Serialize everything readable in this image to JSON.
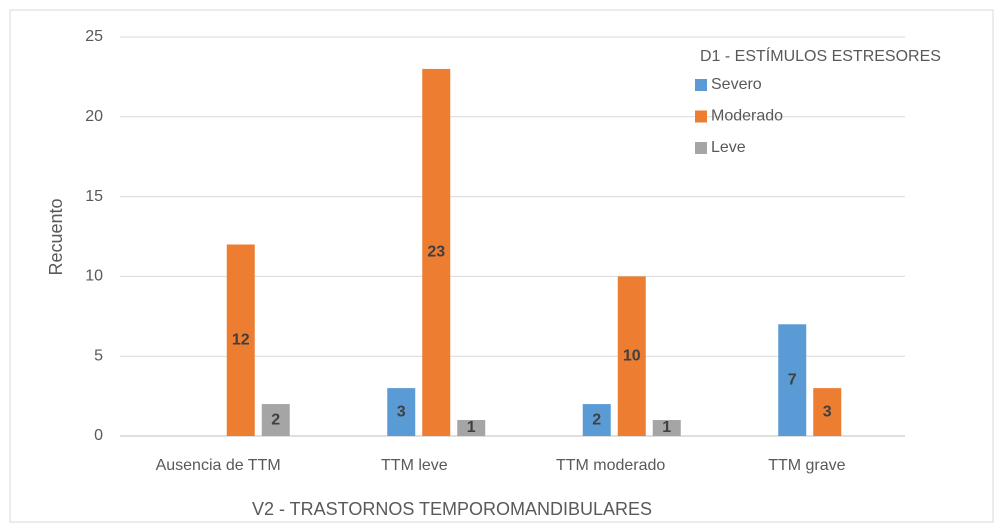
{
  "chart_data": {
    "type": "bar",
    "x_label": "V2 - TRASTORNOS TEMPOROMANDIBULARES",
    "y_label": "Recuento",
    "legend_title": "D1 - ESTÍMULOS ESTRESORES",
    "legend": "upper right",
    "categories": [
      "Ausencia de TTM",
      "TTM leve",
      "TTM moderado",
      "TTM grave"
    ],
    "series": [
      {
        "name": "Severo",
        "color": "#5b9bd5",
        "values": [
          null,
          3,
          2,
          7
        ]
      },
      {
        "name": "Moderado",
        "color": "#ed7d31",
        "values": [
          12,
          23,
          10,
          3
        ]
      },
      {
        "name": "Leve",
        "color": "#a5a5a5",
        "values": [
          2,
          1,
          1,
          null
        ]
      }
    ],
    "ylim": [
      0,
      25
    ],
    "yticks": [
      0,
      5,
      10,
      15,
      20,
      25
    ],
    "grid": true
  }
}
